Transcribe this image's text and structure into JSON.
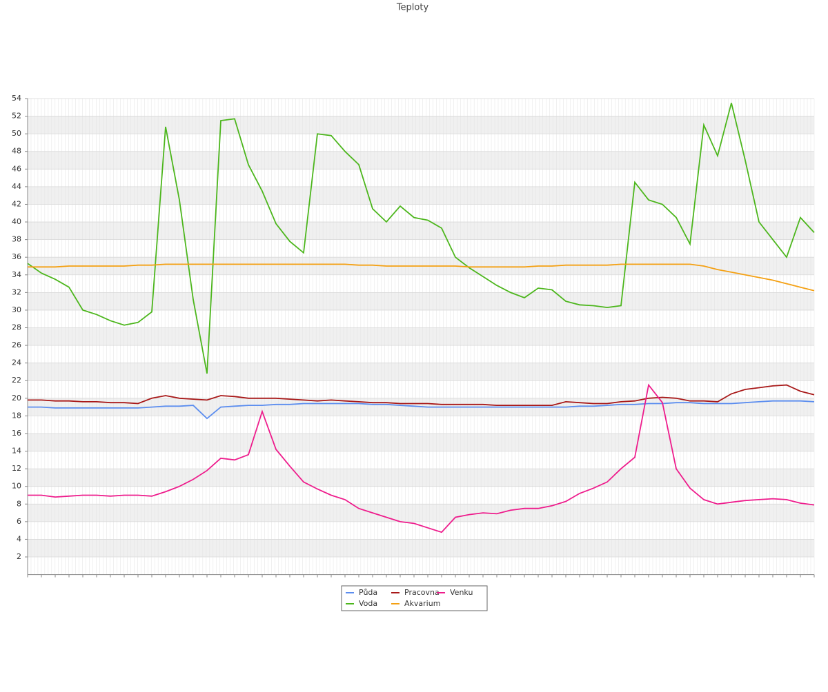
{
  "chart_data": {
    "type": "line",
    "title": "Teploty",
    "categories": [
      null,
      null,
      null,
      null,
      null,
      null,
      null,
      null,
      null,
      null,
      null,
      null,
      null,
      null,
      null,
      null,
      null,
      null,
      null,
      null,
      null,
      null,
      null,
      null,
      null,
      null,
      null,
      null,
      null,
      null,
      null,
      null,
      null,
      null,
      null,
      null,
      null,
      null,
      null,
      null,
      null,
      null,
      null,
      null,
      null,
      null,
      null,
      null,
      null,
      null,
      null,
      null,
      null,
      null,
      null,
      null,
      null,
      null
    ],
    "ylim": [
      0,
      54
    ],
    "yticks": [
      2,
      4,
      6,
      8,
      10,
      12,
      14,
      16,
      18,
      20,
      22,
      24,
      26,
      28,
      30,
      32,
      34,
      36,
      38,
      40,
      42,
      44,
      46,
      48,
      50,
      52,
      54
    ],
    "grid": true,
    "legend": "bottom",
    "series": [
      {
        "name": "Půda",
        "color": "#5b8def",
        "values": [
          19.0,
          19.0,
          18.9,
          18.9,
          18.9,
          18.9,
          18.9,
          18.9,
          18.9,
          19.0,
          19.1,
          19.1,
          19.2,
          17.7,
          19.0,
          19.1,
          19.2,
          19.2,
          19.3,
          19.3,
          19.4,
          19.4,
          19.4,
          19.4,
          19.4,
          19.3,
          19.3,
          19.2,
          19.1,
          19.0,
          19.0,
          19.0,
          19.0,
          19.0,
          19.0,
          19.0,
          19.0,
          19.0,
          19.0,
          19.0,
          19.1,
          19.1,
          19.2,
          19.3,
          19.3,
          19.4,
          19.4,
          19.5,
          19.5,
          19.4,
          19.4,
          19.4,
          19.5,
          19.6,
          19.7,
          19.7,
          19.7,
          19.6
        ]
      },
      {
        "name": "Voda",
        "color": "#4cb61c",
        "values": [
          35.3,
          34.2,
          33.5,
          32.6,
          30.0,
          29.5,
          28.8,
          28.3,
          28.6,
          29.8,
          50.8,
          42.5,
          31.2,
          22.8,
          51.5,
          51.7,
          46.5,
          43.5,
          39.8,
          37.8,
          36.5,
          50.0,
          49.8,
          48.0,
          46.5,
          41.5,
          40.0,
          41.8,
          40.5,
          40.2,
          39.3,
          36.0,
          34.8,
          33.8,
          32.8,
          32.0,
          31.4,
          32.5,
          32.3,
          31.0,
          30.6,
          30.5,
          30.3,
          30.5,
          44.5,
          42.5,
          42.0,
          40.5,
          37.5,
          51.0,
          47.5,
          53.5,
          47.0,
          40.0,
          38.0,
          36.0,
          40.5,
          38.8
        ]
      },
      {
        "name": "Pracovna",
        "color": "#a81818",
        "values": [
          19.8,
          19.8,
          19.7,
          19.7,
          19.6,
          19.6,
          19.5,
          19.5,
          19.4,
          20.0,
          20.3,
          20.0,
          19.9,
          19.8,
          20.3,
          20.2,
          20.0,
          20.0,
          20.0,
          19.9,
          19.8,
          19.7,
          19.8,
          19.7,
          19.6,
          19.5,
          19.5,
          19.4,
          19.4,
          19.4,
          19.3,
          19.3,
          19.3,
          19.3,
          19.2,
          19.2,
          19.2,
          19.2,
          19.2,
          19.6,
          19.5,
          19.4,
          19.4,
          19.6,
          19.7,
          20.0,
          20.1,
          20.0,
          19.7,
          19.7,
          19.6,
          20.5,
          21.0,
          21.2,
          21.4,
          21.5,
          20.8,
          20.4
        ]
      },
      {
        "name": "Akvarium",
        "color": "#f4a012",
        "values": [
          34.9,
          34.9,
          34.9,
          35.0,
          35.0,
          35.0,
          35.0,
          35.0,
          35.1,
          35.1,
          35.2,
          35.2,
          35.2,
          35.2,
          35.2,
          35.2,
          35.2,
          35.2,
          35.2,
          35.2,
          35.2,
          35.2,
          35.2,
          35.2,
          35.1,
          35.1,
          35.0,
          35.0,
          35.0,
          35.0,
          35.0,
          35.0,
          34.9,
          34.9,
          34.9,
          34.9,
          34.9,
          35.0,
          35.0,
          35.1,
          35.1,
          35.1,
          35.1,
          35.2,
          35.2,
          35.2,
          35.2,
          35.2,
          35.2,
          35.0,
          34.6,
          34.3,
          34.0,
          33.7,
          33.4,
          33.0,
          32.6,
          32.2
        ]
      },
      {
        "name": "Venku",
        "color": "#ee1c8c",
        "values": [
          9.0,
          9.0,
          8.8,
          8.9,
          9.0,
          9.0,
          8.9,
          9.0,
          9.0,
          8.9,
          9.4,
          10.0,
          10.8,
          11.8,
          13.2,
          13.0,
          13.6,
          18.5,
          14.2,
          12.3,
          10.5,
          9.7,
          9.0,
          8.5,
          7.5,
          7.0,
          6.5,
          6.0,
          5.8,
          5.3,
          4.8,
          6.5,
          6.8,
          7.0,
          6.9,
          7.3,
          7.5,
          7.5,
          7.8,
          8.3,
          9.2,
          9.8,
          10.5,
          12.0,
          13.3,
          21.5,
          19.5,
          12.0,
          9.8,
          8.5,
          8.0,
          8.2,
          8.4,
          8.5,
          8.6,
          8.5,
          8.1,
          7.9
        ]
      }
    ]
  }
}
